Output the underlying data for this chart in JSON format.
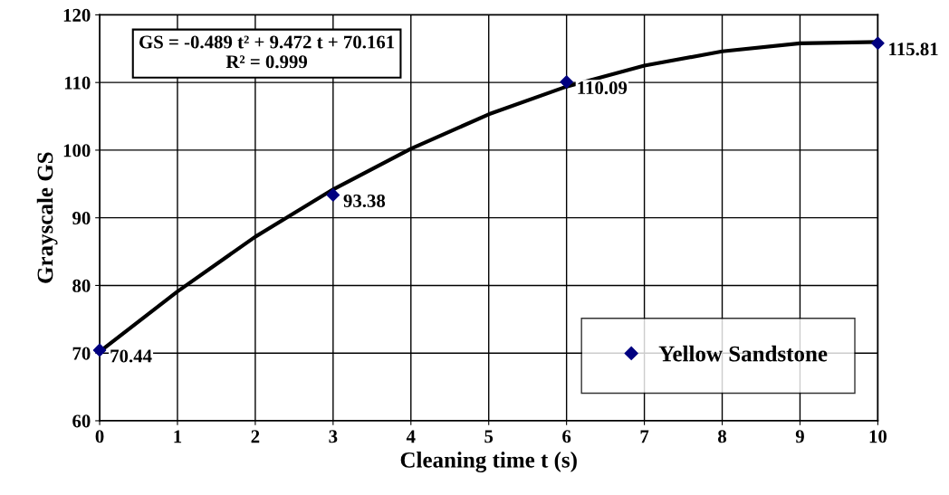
{
  "chart_data": {
    "type": "scatter",
    "xlabel": "Cleaning time t (s)",
    "ylabel": "Grayscale GS",
    "series": [
      {
        "name": "Yellow Sandstone",
        "color": "#000080",
        "marker": "diamond",
        "x": [
          0,
          3,
          6,
          10
        ],
        "values": [
          70.44,
          93.38,
          110.09,
          115.81
        ],
        "value_labels": [
          "70.44",
          "93.38",
          "110.09",
          "115.81"
        ]
      },
      {
        "type": "line",
        "color": "#000000",
        "line_style": "solid",
        "x": [
          0,
          1,
          2,
          3,
          4,
          5,
          6,
          7,
          8,
          9,
          10
        ],
        "values": [
          70.2,
          79.1,
          87.2,
          94.2,
          100.2,
          105.3,
          109.4,
          112.5,
          114.6,
          115.8,
          116.0
        ]
      }
    ],
    "annotations": [
      "GS = -0.489 t² + 9.472 t + 70.161\nR² = 0.999"
    ],
    "xlim": [
      0,
      10
    ],
    "xticks": [
      0,
      1,
      2,
      3,
      4,
      5,
      6,
      7,
      8,
      9,
      10
    ],
    "ylim": [
      60,
      120
    ],
    "yticks": [
      60,
      70,
      80,
      90,
      100,
      110,
      120
    ],
    "grid": true,
    "legend": "bottom right"
  }
}
